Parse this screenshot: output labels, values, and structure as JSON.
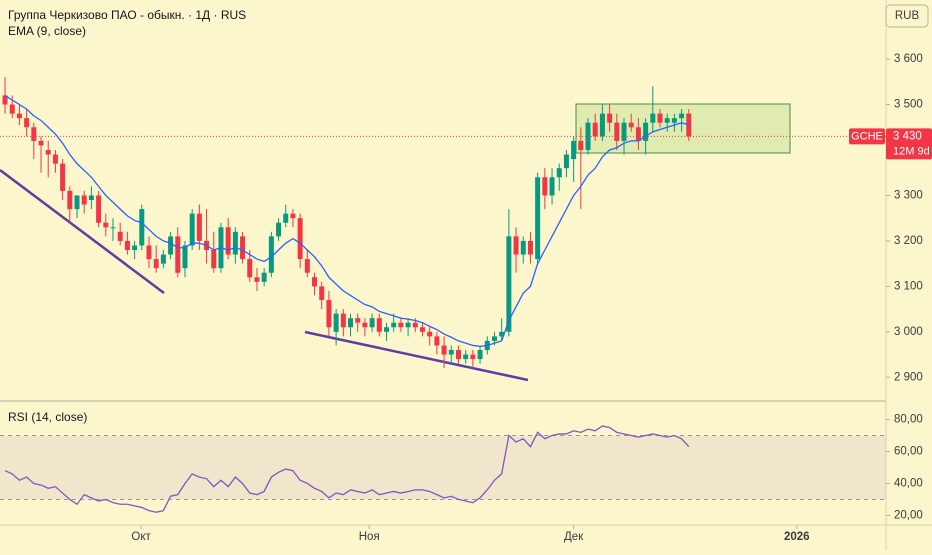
{
  "chart_data": {
    "type": "candlestick",
    "title": "Группа Черкизово ПАО - обыкн. · 1Д · RUS",
    "currency": "RUB",
    "x": [
      0,
      1,
      2,
      3,
      4,
      5,
      6,
      7,
      8,
      9,
      10,
      11,
      12,
      13,
      14,
      15,
      16,
      17,
      18,
      19,
      20,
      21,
      22,
      23,
      24,
      25,
      26,
      27,
      28,
      29,
      30,
      31,
      32,
      33,
      34,
      35,
      36,
      37,
      38,
      39,
      40,
      41,
      42,
      43,
      44,
      45,
      46,
      47,
      48,
      49,
      50,
      51,
      52,
      53,
      54,
      55,
      56,
      57,
      58,
      59,
      60,
      61,
      62,
      63,
      64,
      65,
      66,
      67,
      68,
      69,
      70,
      71,
      72,
      73,
      74,
      75,
      76,
      77,
      78,
      79,
      80,
      81,
      82,
      83,
      84,
      85,
      86,
      87,
      88,
      89,
      90,
      91,
      92,
      93,
      94,
      95
    ],
    "xlim": [
      -0.7,
      122.4
    ],
    "xticks": [
      {
        "value": 18.9,
        "label": "Окт"
      },
      {
        "value": 50.6,
        "label": "Ноя"
      },
      {
        "value": 79,
        "label": "Дек"
      },
      {
        "value": 110,
        "label": "2026"
      }
    ],
    "open": [
      3520,
      3500,
      3480,
      3470,
      3450,
      3420,
      3400,
      3390,
      3370,
      3310,
      3270,
      3300,
      3290,
      3300,
      3240,
      3230,
      3220,
      3200,
      3180,
      3190,
      3190,
      3160,
      3150,
      3170,
      3210,
      3140,
      3190,
      3260,
      3200,
      3180,
      3140,
      3230,
      3170,
      3210,
      3160,
      3120,
      3110,
      3130,
      3210,
      3240,
      3260,
      3250,
      3160,
      3120,
      3100,
      3070,
      3000,
      3040,
      3010,
      3030,
      3020,
      3010,
      3030,
      3000,
      3010,
      3020,
      3010,
      3020,
      3010,
      3000,
      2990,
      2970,
      2950,
      2960,
      2940,
      2950,
      2940,
      2960,
      2980,
      2990,
      3000,
      3210,
      3170,
      3200,
      3160,
      3340,
      3300,
      3340,
      3360,
      3380,
      3420,
      3400,
      3460,
      3430,
      3480,
      3460,
      3420,
      3460,
      3450,
      3420,
      3460,
      3480,
      3460,
      3460,
      3470,
      3480
    ],
    "high": [
      3560,
      3520,
      3500,
      3490,
      3460,
      3430,
      3420,
      3400,
      3380,
      3320,
      3300,
      3310,
      3320,
      3310,
      3260,
      3250,
      3240,
      3220,
      3200,
      3280,
      3210,
      3190,
      3180,
      3220,
      3230,
      3200,
      3270,
      3280,
      3270,
      3220,
      3240,
      3250,
      3230,
      3220,
      3180,
      3140,
      3140,
      3220,
      3250,
      3280,
      3270,
      3260,
      3180,
      3130,
      3110,
      3090,
      3050,
      3050,
      3040,
      3040,
      3030,
      3040,
      3040,
      3020,
      3040,
      3030,
      3030,
      3030,
      3020,
      3010,
      3000,
      2990,
      2970,
      2970,
      2960,
      2960,
      2970,
      2990,
      3000,
      3030,
      3270,
      3230,
      3210,
      3220,
      3350,
      3360,
      3360,
      3370,
      3400,
      3430,
      3450,
      3470,
      3480,
      3500,
      3500,
      3480,
      3470,
      3480,
      3470,
      3470,
      3540,
      3490,
      3480,
      3480,
      3490,
      3490
    ],
    "low": [
      3480,
      3470,
      3455,
      3430,
      3380,
      3350,
      3340,
      3350,
      3290,
      3240,
      3250,
      3260,
      3270,
      3230,
      3210,
      3200,
      3190,
      3170,
      3160,
      3180,
      3140,
      3130,
      3140,
      3160,
      3120,
      3120,
      3180,
      3180,
      3150,
      3130,
      3130,
      3160,
      3150,
      3150,
      3110,
      3090,
      3100,
      3120,
      3200,
      3230,
      3230,
      3140,
      3120,
      3080,
      3050,
      2990,
      2970,
      2990,
      2990,
      3000,
      2990,
      3000,
      2990,
      2980,
      3000,
      3000,
      2990,
      3000,
      2990,
      2970,
      2950,
      2920,
      2930,
      2930,
      2930,
      2920,
      2930,
      2950,
      2970,
      2980,
      2990,
      3130,
      3150,
      3150,
      3150,
      3270,
      3280,
      3310,
      3340,
      3330,
      3270,
      3390,
      3420,
      3420,
      3440,
      3400,
      3390,
      3440,
      3400,
      3390,
      3440,
      3450,
      3440,
      3440,
      3440,
      3420
    ],
    "close": [
      3500,
      3480,
      3470,
      3450,
      3420,
      3410,
      3390,
      3370,
      3310,
      3270,
      3300,
      3280,
      3300,
      3240,
      3230,
      3230,
      3200,
      3180,
      3190,
      3270,
      3160,
      3140,
      3170,
      3210,
      3130,
      3190,
      3260,
      3200,
      3180,
      3140,
      3230,
      3170,
      3220,
      3160,
      3120,
      3110,
      3130,
      3210,
      3240,
      3260,
      3250,
      3160,
      3130,
      3100,
      3070,
      3010,
      3040,
      3010,
      3030,
      3020,
      3010,
      3030,
      3000,
      3010,
      3020,
      3010,
      3020,
      3010,
      3000,
      2990,
      2970,
      2950,
      2960,
      2940,
      2950,
      2940,
      2960,
      2980,
      2990,
      3000,
      3210,
      3170,
      3200,
      3170,
      3340,
      3300,
      3340,
      3360,
      3390,
      3420,
      3400,
      3460,
      3430,
      3480,
      3460,
      3420,
      3460,
      3450,
      3420,
      3460,
      3480,
      3460,
      3470,
      3470,
      3480,
      3430
    ],
    "up_color": "#089981",
    "down_color": "#f23645",
    "series": [
      {
        "name": "EMA (9, close)",
        "color": "#2962ff",
        "values": [
          3520,
          3510,
          3500,
          3490,
          3475,
          3465,
          3450,
          3435,
          3415,
          3390,
          3370,
          3355,
          3340,
          3320,
          3300,
          3285,
          3270,
          3255,
          3245,
          3240,
          3225,
          3210,
          3200,
          3195,
          3185,
          3185,
          3195,
          3195,
          3190,
          3180,
          3185,
          3180,
          3185,
          3180,
          3170,
          3160,
          3155,
          3165,
          3180,
          3195,
          3205,
          3195,
          3180,
          3165,
          3145,
          3120,
          3105,
          3090,
          3080,
          3070,
          3060,
          3055,
          3045,
          3040,
          3035,
          3030,
          3028,
          3025,
          3020,
          3012,
          3005,
          2995,
          2988,
          2980,
          2975,
          2970,
          2968,
          2970,
          2975,
          2980,
          3025,
          3055,
          3085,
          3100,
          3150,
          3180,
          3210,
          3240,
          3270,
          3300,
          3320,
          3345,
          3360,
          3385,
          3400,
          3405,
          3415,
          3420,
          3420,
          3430,
          3440,
          3445,
          3450,
          3455,
          3460,
          3455
        ]
      }
    ],
    "ylim": [
      2850,
      3730
    ],
    "yticks": [
      {
        "value": 2900,
        "label": "2 900"
      },
      {
        "value": 3000,
        "label": "3 000"
      },
      {
        "value": 3100,
        "label": "3 100"
      },
      {
        "value": 3200,
        "label": "3 200"
      },
      {
        "value": 3300,
        "label": "3 300"
      },
      {
        "value": 3400,
        "label": "3 400"
      },
      {
        "value": 3500,
        "label": "3 500"
      },
      {
        "value": 3600,
        "label": "3 600"
      }
    ],
    "last_price": {
      "symbol": "GCHE",
      "value": 3430,
      "label": "3 430",
      "countdown": "12M 9d"
    },
    "indicators": [
      {
        "type": "line",
        "name": "RSI (14, close)",
        "color": "#7e57c2",
        "values": [
          48,
          46,
          42,
          44,
          40,
          39,
          37,
          38,
          34,
          30,
          27,
          33,
          31,
          29,
          30,
          28,
          27,
          27,
          26,
          25,
          23,
          22,
          23,
          32,
          33,
          40,
          46,
          44,
          43,
          38,
          42,
          38,
          44,
          40,
          34,
          33,
          35,
          44,
          47,
          49,
          48,
          42,
          40,
          37,
          35,
          31,
          34,
          33,
          36,
          35,
          34,
          36,
          33,
          34,
          35,
          34,
          35,
          36,
          36,
          35,
          33,
          31,
          32,
          30,
          29,
          28,
          31,
          36,
          42,
          46,
          70,
          66,
          68,
          63,
          72,
          68,
          70,
          71,
          71,
          73,
          72,
          74,
          73,
          76,
          75,
          72,
          71,
          70,
          69,
          70,
          71,
          70,
          69,
          70,
          68,
          63
        ],
        "ylim": [
          14,
          91
        ],
        "yticks": [
          {
            "value": 20,
            "label": "20,00"
          },
          {
            "value": 40,
            "label": "40,00"
          },
          {
            "value": 60,
            "label": "60,00"
          },
          {
            "value": 80,
            "label": "80,00"
          }
        ],
        "band": [
          30,
          70
        ],
        "band_color": "#7e57c2"
      }
    ]
  }
}
